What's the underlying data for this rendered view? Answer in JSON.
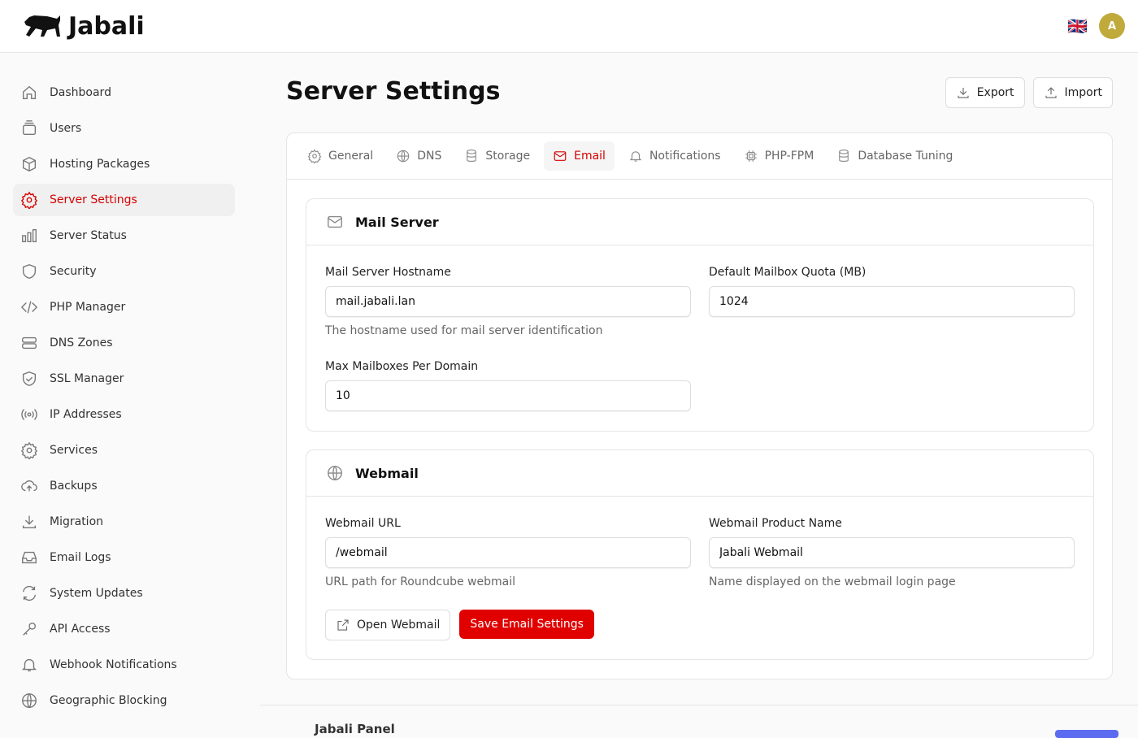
{
  "app": {
    "brand": "Jabali",
    "language_flag": "🇬🇧",
    "avatar_initial": "A",
    "accent": "#d40000"
  },
  "sidebar": {
    "items": [
      {
        "label": "Dashboard",
        "icon": "home-icon"
      },
      {
        "label": "Users",
        "icon": "users-icon"
      },
      {
        "label": "Hosting Packages",
        "icon": "package-icon"
      },
      {
        "label": "Server Settings",
        "icon": "gear-icon",
        "active": true
      },
      {
        "label": "Server Status",
        "icon": "chart-icon"
      },
      {
        "label": "Security",
        "icon": "shield-icon"
      },
      {
        "label": "PHP Manager",
        "icon": "code-icon"
      },
      {
        "label": "DNS Zones",
        "icon": "server-icon"
      },
      {
        "label": "SSL Manager",
        "icon": "shield-check-icon"
      },
      {
        "label": "IP Addresses",
        "icon": "signal-icon"
      },
      {
        "label": "Services",
        "icon": "gear-icon"
      },
      {
        "label": "Backups",
        "icon": "cloud-upload-icon"
      },
      {
        "label": "Migration",
        "icon": "download-icon"
      },
      {
        "label": "Email Logs",
        "icon": "inbox-icon"
      },
      {
        "label": "System Updates",
        "icon": "refresh-icon"
      },
      {
        "label": "API Access",
        "icon": "key-icon"
      },
      {
        "label": "Webhook Notifications",
        "icon": "bell-icon"
      },
      {
        "label": "Geographic Blocking",
        "icon": "globe-icon"
      }
    ]
  },
  "page": {
    "title": "Server Settings",
    "export_label": "Export",
    "import_label": "Import"
  },
  "tabs": [
    {
      "label": "General"
    },
    {
      "label": "DNS"
    },
    {
      "label": "Storage"
    },
    {
      "label": "Email",
      "active": true
    },
    {
      "label": "Notifications"
    },
    {
      "label": "PHP-FPM"
    },
    {
      "label": "Database Tuning"
    }
  ],
  "mail": {
    "title": "Mail Server",
    "hostname_label": "Mail Server Hostname",
    "hostname": "mail.jabali.lan",
    "hostname_help": "The hostname used for mail server identification",
    "quota_label": "Default Mailbox Quota (MB)",
    "quota": "1024",
    "max_label": "Max Mailboxes Per Domain",
    "max": "10"
  },
  "webmail": {
    "title": "Webmail",
    "url_label": "Webmail URL",
    "url": "/webmail",
    "url_help": "URL path for Roundcube webmail",
    "name_label": "Webmail Product Name",
    "name": "Jabali Webmail",
    "name_help": "Name displayed on the webmail login page",
    "open_label": "Open Webmail",
    "save_label": "Save Email Settings"
  },
  "footer": {
    "brand": "Jabali Panel"
  }
}
